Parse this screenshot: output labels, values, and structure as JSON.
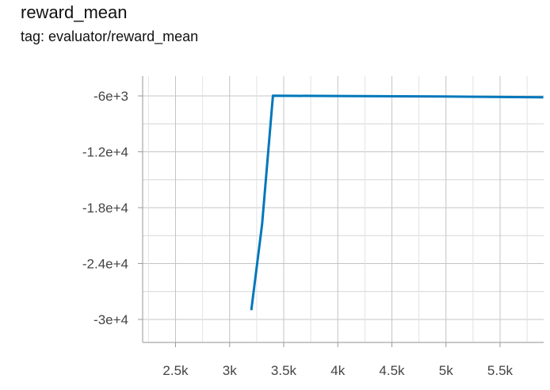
{
  "header": {
    "title": "reward_mean",
    "subtitle": "tag: evaluator/reward_mean"
  },
  "chart_data": {
    "type": "line",
    "title": "reward_mean",
    "subtitle": "tag: evaluator/reward_mean",
    "xlabel": "",
    "ylabel": "",
    "xlim": [
      2200,
      5900
    ],
    "ylim": [
      -32500,
      -4000
    ],
    "x_ticks": [
      2500,
      3000,
      3500,
      4000,
      4500,
      5000,
      5500
    ],
    "x_tick_labels": [
      "2.5k",
      "3k",
      "3.5k",
      "4k",
      "4.5k",
      "5k",
      "5.5k"
    ],
    "y_ticks": [
      -6000,
      -12000,
      -18000,
      -24000,
      -30000
    ],
    "y_tick_labels": [
      "-6e+3",
      "-1.2e+4",
      "-1.8e+4",
      "-2.4e+4",
      "-3e+4"
    ],
    "grid": true,
    "series": [
      {
        "color": "#0077bb",
        "x": [
          3200,
          3300,
          3400,
          4000,
          5000,
          5900
        ],
        "y": [
          -29000,
          -19800,
          -5980,
          -6010,
          -6060,
          -6150
        ]
      }
    ]
  }
}
